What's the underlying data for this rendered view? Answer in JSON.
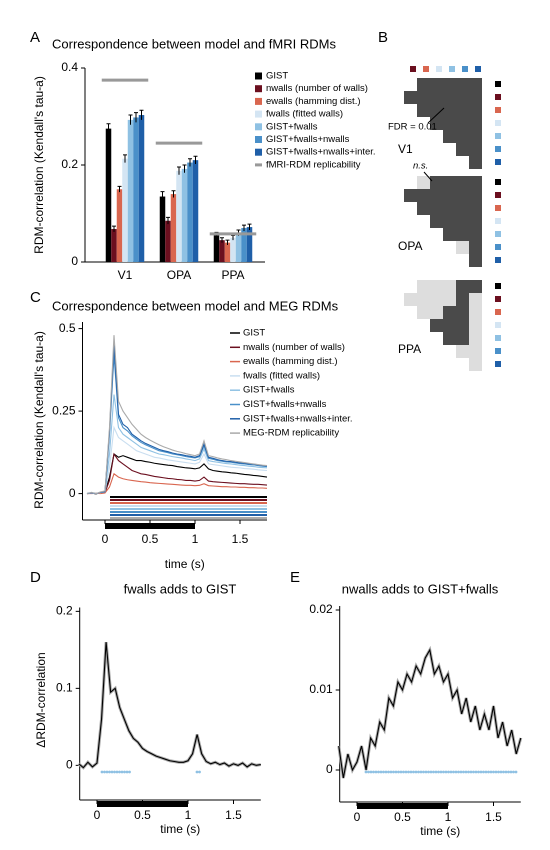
{
  "chart_data": [
    {
      "type": "bar",
      "panel_label": "A",
      "title": "Correspondence between model and fMRI RDMs",
      "y_label": "RDM-correlation (Kendall's tau-a)",
      "categories": [
        "V1",
        "OPA",
        "PPA"
      ],
      "ylim": [
        0,
        0.4
      ],
      "yticks": [
        0,
        0.2,
        0.4
      ],
      "series": [
        {
          "name": "GIST",
          "color": "#000000",
          "values": [
            0.275,
            0.135,
            0.055
          ],
          "errors": [
            0.01,
            0.01,
            0.006
          ]
        },
        {
          "name": "nwalls (number of walls)",
          "color": "#6b0f1f",
          "values": [
            0.068,
            0.085,
            0.045
          ],
          "errors": [
            0.006,
            0.007,
            0.005
          ]
        },
        {
          "name": "ewalls (hamming dist.)",
          "color": "#d9664f",
          "values": [
            0.15,
            0.14,
            0.04
          ],
          "errors": [
            0.006,
            0.007,
            0.005
          ]
        },
        {
          "name": "fwalls (fitted walls)",
          "color": "#d4e5f3",
          "values": [
            0.213,
            0.188,
            0.05
          ],
          "errors": [
            0.008,
            0.008,
            0.005
          ]
        },
        {
          "name": "GIST+fwalls",
          "color": "#8fc1e3",
          "values": [
            0.293,
            0.192,
            0.06
          ],
          "errors": [
            0.01,
            0.008,
            0.006
          ]
        },
        {
          "name": "GIST+fwalls+nwalls",
          "color": "#4a90c9",
          "values": [
            0.298,
            0.205,
            0.07
          ],
          "errors": [
            0.01,
            0.008,
            0.006
          ]
        },
        {
          "name": "GIST+fwalls+nwalls+inter.",
          "color": "#1f5fa8",
          "values": [
            0.303,
            0.21,
            0.072
          ],
          "errors": [
            0.01,
            0.008,
            0.006
          ]
        }
      ],
      "reference": {
        "name": "fMRI-RDM replicability",
        "color": "#999999",
        "values": [
          0.375,
          0.245,
          0.058
        ]
      }
    },
    {
      "type": "line",
      "panel_label": "C",
      "title": "Correspondence between model and MEG RDMs",
      "y_label": "RDM-correlation (Kendall's tau-a)",
      "x_label": "time (s)",
      "xlim": [
        -0.25,
        1.8
      ],
      "ylim": [
        -0.08,
        0.52
      ],
      "xticks": [
        0,
        0.5,
        1,
        1.5
      ],
      "yticks": [
        0,
        0.25,
        0.5
      ],
      "x": [
        -0.2,
        -0.15,
        -0.1,
        -0.05,
        0,
        0.05,
        0.1,
        0.15,
        0.2,
        0.25,
        0.3,
        0.35,
        0.4,
        0.45,
        0.5,
        0.55,
        0.6,
        0.65,
        0.7,
        0.75,
        0.8,
        0.85,
        0.9,
        0.95,
        1,
        1.05,
        1.1,
        1.15,
        1.2,
        1.25,
        1.3,
        1.35,
        1.4,
        1.45,
        1.5,
        1.55,
        1.6,
        1.65,
        1.7,
        1.75,
        1.8
      ],
      "series": [
        {
          "name": "GIST",
          "color": "#000000",
          "values": [
            0,
            0.002,
            -0.001,
            0.003,
            0.005,
            0.05,
            0.12,
            0.11,
            0.115,
            0.11,
            0.105,
            0.1,
            0.1,
            0.097,
            0.095,
            0.092,
            0.09,
            0.088,
            0.086,
            0.085,
            0.082,
            0.08,
            0.078,
            0.077,
            0.075,
            0.078,
            0.09,
            0.075,
            0.07,
            0.068,
            0.066,
            0.065,
            0.063,
            0.062,
            0.06,
            0.058,
            0.057,
            0.055,
            0.054,
            0.052,
            0.05
          ]
        },
        {
          "name": "nwalls (number of walls)",
          "color": "#6b0f1f",
          "values": [
            0,
            0.001,
            0,
            0.002,
            0.003,
            0.04,
            0.12,
            0.1,
            0.09,
            0.08,
            0.07,
            0.065,
            0.06,
            0.058,
            0.055,
            0.052,
            0.05,
            0.048,
            0.046,
            0.045,
            0.043,
            0.042,
            0.04,
            0.04,
            0.038,
            0.04,
            0.05,
            0.038,
            0.036,
            0.035,
            0.034,
            0.033,
            0.032,
            0.031,
            0.03,
            0.03,
            0.029,
            0.028,
            0.028,
            0.027,
            0.026
          ]
        },
        {
          "name": "ewalls (hamming dist.)",
          "color": "#d9664f",
          "values": [
            0,
            0,
            0.001,
            0,
            0.002,
            0.02,
            0.06,
            0.05,
            0.045,
            0.042,
            0.04,
            0.038,
            0.036,
            0.035,
            0.033,
            0.032,
            0.031,
            0.03,
            0.029,
            0.028,
            0.027,
            0.026,
            0.025,
            0.025,
            0.024,
            0.025,
            0.03,
            0.024,
            0.023,
            0.022,
            0.021,
            0.021,
            0.02,
            0.02,
            0.019,
            0.019,
            0.018,
            0.018,
            0.017,
            0.017,
            0.016
          ]
        },
        {
          "name": "fwalls (fitted walls)",
          "color": "#c9def0",
          "values": [
            0,
            0.002,
            0,
            0.003,
            0.005,
            0.08,
            0.2,
            0.17,
            0.16,
            0.15,
            0.14,
            0.13,
            0.125,
            0.12,
            0.115,
            0.11,
            0.108,
            0.105,
            0.102,
            0.1,
            0.098,
            0.096,
            0.094,
            0.092,
            0.09,
            0.095,
            0.12,
            0.09,
            0.088,
            0.086,
            0.084,
            0.082,
            0.08,
            0.079,
            0.078,
            0.076,
            0.075,
            0.074,
            0.072,
            0.071,
            0.07
          ]
        },
        {
          "name": "GIST+fwalls",
          "color": "#8fc1e3",
          "values": [
            0,
            0.002,
            0,
            0.003,
            0.005,
            0.12,
            0.3,
            0.2,
            0.18,
            0.17,
            0.16,
            0.15,
            0.14,
            0.135,
            0.13,
            0.125,
            0.12,
            0.118,
            0.115,
            0.112,
            0.11,
            0.108,
            0.105,
            0.103,
            0.1,
            0.105,
            0.135,
            0.1,
            0.097,
            0.095,
            0.093,
            0.091,
            0.09,
            0.088,
            0.086,
            0.085,
            0.083,
            0.082,
            0.08,
            0.079,
            0.078
          ]
        },
        {
          "name": "GIST+fwalls+nwalls",
          "color": "#4a90c9",
          "values": [
            0,
            0.003,
            0,
            0.004,
            0.006,
            0.18,
            0.42,
            0.23,
            0.2,
            0.19,
            0.175,
            0.165,
            0.155,
            0.148,
            0.142,
            0.136,
            0.13,
            0.127,
            0.124,
            0.12,
            0.118,
            0.115,
            0.112,
            0.11,
            0.108,
            0.112,
            0.145,
            0.107,
            0.104,
            0.1,
            0.098,
            0.096,
            0.095,
            0.093,
            0.091,
            0.09,
            0.088,
            0.087,
            0.085,
            0.083,
            0.082
          ]
        },
        {
          "name": "GIST+fwalls+nwalls+inter.",
          "color": "#1f5fa8",
          "values": [
            0,
            0.003,
            0,
            0.004,
            0.006,
            0.19,
            0.45,
            0.24,
            0.21,
            0.2,
            0.18,
            0.17,
            0.16,
            0.152,
            0.146,
            0.14,
            0.134,
            0.13,
            0.127,
            0.123,
            0.12,
            0.118,
            0.115,
            0.113,
            0.11,
            0.115,
            0.15,
            0.11,
            0.107,
            0.103,
            0.1,
            0.098,
            0.097,
            0.095,
            0.093,
            0.092,
            0.09,
            0.089,
            0.087,
            0.085,
            0.084
          ]
        },
        {
          "name": "MEG-RDM replicability",
          "color": "#aaaaaa",
          "values": [
            0,
            0.004,
            0,
            0.005,
            0.008,
            0.2,
            0.48,
            0.28,
            0.25,
            0.23,
            0.21,
            0.195,
            0.18,
            0.17,
            0.162,
            0.155,
            0.148,
            0.142,
            0.137,
            0.132,
            0.128,
            0.125,
            0.121,
            0.118,
            0.115,
            0.12,
            0.16,
            0.115,
            0.112,
            0.108,
            0.105,
            0.103,
            0.1,
            0.098,
            0.096,
            0.094,
            0.092,
            0.09,
            0.088,
            0.086,
            0.085
          ]
        }
      ]
    },
    {
      "type": "line",
      "panel_label": "D",
      "title": "fwalls adds to GIST",
      "y_label": "ΔRDM-correlation",
      "x_label": "time (s)",
      "xlim": [
        -0.19,
        1.8
      ],
      "ylim": [
        -0.045,
        0.205
      ],
      "xticks": [
        0,
        0.5,
        1,
        1.5
      ],
      "yticks": [
        0,
        0.1,
        0.2
      ],
      "x": [
        -0.2,
        -0.15,
        -0.1,
        -0.05,
        0,
        0.05,
        0.1,
        0.15,
        0.2,
        0.25,
        0.3,
        0.35,
        0.4,
        0.45,
        0.5,
        0.55,
        0.6,
        0.65,
        0.7,
        0.75,
        0.8,
        0.85,
        0.9,
        0.95,
        1,
        1.05,
        1.1,
        1.15,
        1.2,
        1.25,
        1.3,
        1.35,
        1.4,
        1.45,
        1.5,
        1.55,
        1.6,
        1.65,
        1.7,
        1.75,
        1.8
      ],
      "series": [
        {
          "color": "#000000",
          "values": [
            0.002,
            -0.003,
            0.004,
            -0.002,
            0.003,
            0.06,
            0.16,
            0.095,
            0.1,
            0.075,
            0.06,
            0.045,
            0.035,
            0.03,
            0.022,
            0.018,
            0.015,
            0.012,
            0.01,
            0.008,
            0.006,
            0.005,
            0.004,
            0.004,
            0.006,
            0.015,
            0.04,
            0.015,
            0.005,
            0.002,
            0.004,
            0.001,
            0.003,
            -0.001,
            0.002,
            0,
            0.003,
            -0.002,
            0.002,
            0,
            0.001
          ]
        }
      ]
    },
    {
      "type": "line",
      "panel_label": "E",
      "title": "nwalls adds to GIST+fwalls",
      "x_label": "time (s)",
      "xlim": [
        -0.19,
        1.8
      ],
      "ylim": [
        -0.004,
        0.0205
      ],
      "xticks": [
        0,
        0.5,
        1,
        1.5
      ],
      "yticks": [
        0,
        0.01,
        0.02
      ],
      "x": [
        -0.2,
        -0.15,
        -0.1,
        -0.05,
        0,
        0.05,
        0.1,
        0.15,
        0.2,
        0.25,
        0.3,
        0.35,
        0.4,
        0.45,
        0.5,
        0.55,
        0.6,
        0.65,
        0.7,
        0.75,
        0.8,
        0.85,
        0.9,
        0.95,
        1,
        1.05,
        1.1,
        1.15,
        1.2,
        1.25,
        1.3,
        1.35,
        1.4,
        1.45,
        1.5,
        1.55,
        1.6,
        1.65,
        1.7,
        1.75,
        1.8
      ],
      "series": [
        {
          "color": "#000000",
          "values": [
            0.003,
            -0.001,
            0.002,
            0,
            0.001,
            0.003,
            0,
            0.004,
            0.003,
            0.006,
            0.005,
            0.009,
            0.008,
            0.011,
            0.01,
            0.012,
            0.011,
            0.013,
            0.012,
            0.014,
            0.015,
            0.012,
            0.013,
            0.011,
            0.012,
            0.009,
            0.01,
            0.007,
            0.009,
            0.006,
            0.008,
            0.005,
            0.007,
            0.005,
            0.008,
            0.004,
            0.006,
            0.003,
            0.005,
            0.002,
            0.004
          ]
        }
      ]
    }
  ],
  "panel_b": {
    "label": "B",
    "annotations": [
      "FDR = 0.01",
      "n.s."
    ],
    "regions": [
      "V1",
      "OPA",
      "PPA"
    ]
  }
}
